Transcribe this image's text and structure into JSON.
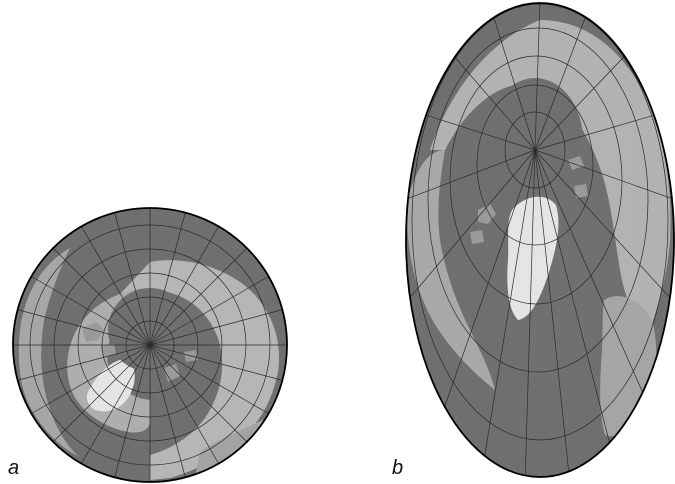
{
  "panels": [
    {
      "label": "a"
    },
    {
      "label": "b"
    }
  ],
  "colors": {
    "ocean": "#6b6b6b",
    "land_light": "#c9c9c9",
    "land_mid": "#9d9d9d",
    "ice": "#ececec",
    "graticule": "#2a2a2a",
    "outline": "#000000"
  }
}
